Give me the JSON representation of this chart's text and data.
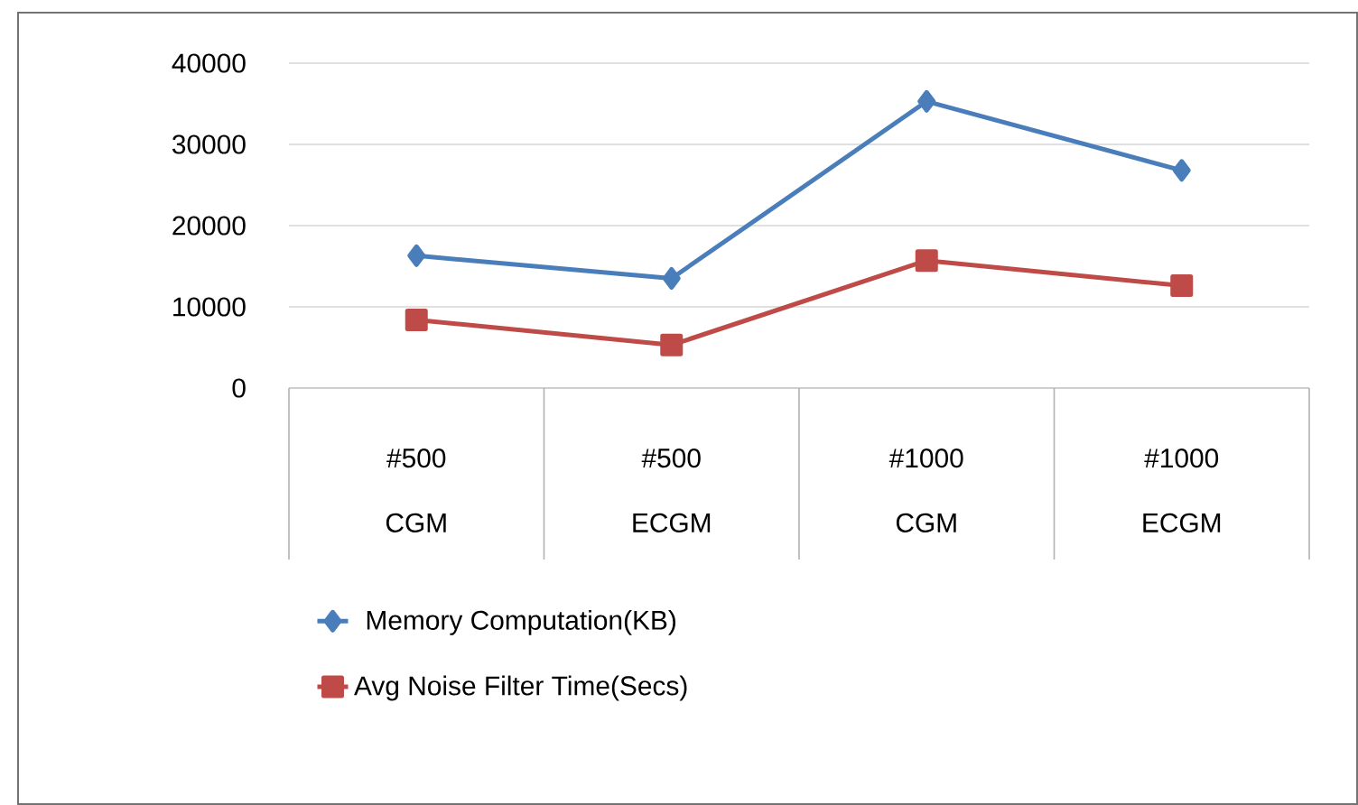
{
  "chart_data": {
    "type": "line",
    "categories": [
      "#500 CGM",
      "#500 ECGM",
      "#1000 CGM",
      "#1000 ECGM"
    ],
    "series": [
      {
        "name": "Memory Computation(KB)",
        "color": "#4a7ebb",
        "marker": "diamond",
        "values": [
          16300,
          13500,
          35300,
          26800
        ]
      },
      {
        "name": "Avg Noise Filter Time(Secs)",
        "color": "#be4b48",
        "marker": "square",
        "values": [
          8400,
          5300,
          15700,
          12600
        ]
      }
    ],
    "ylim": [
      0,
      40000
    ],
    "yticks": [
      0,
      10000,
      20000,
      30000,
      40000
    ],
    "grid": "y",
    "legend": "bottom"
  }
}
